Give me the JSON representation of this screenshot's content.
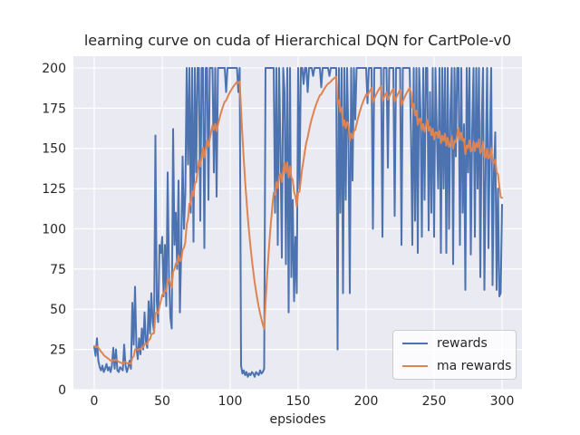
{
  "title": "learning curve on cuda of Hierarchical DQN for CartPole-v0",
  "xlabel": "epsiodes",
  "legend": {
    "position": "lower right",
    "entries": [
      {
        "label": "rewards",
        "color": "#4C72B0"
      },
      {
        "label": "ma rewards",
        "color": "#DD8452"
      }
    ]
  },
  "style": {
    "figure_background": "#FFFFFF",
    "axes_background": "#EAEAF2",
    "grid_color": "#FFFFFF",
    "text_color": "#262626",
    "legend_background": "rgba(255,255,255,0.8)",
    "legend_border": "#CCCCCC"
  },
  "chart_data": {
    "type": "line",
    "title": "learning curve on cuda of Hierarchical DQN for CartPole-v0",
    "xlabel": "epsiodes",
    "ylabel": "",
    "grid": true,
    "legend_position": "lower right",
    "x_ticks": [
      0,
      50,
      100,
      150,
      200,
      250,
      300
    ],
    "y_ticks": [
      0,
      25,
      50,
      75,
      100,
      125,
      150,
      175,
      200
    ],
    "xlim": [
      -15.33,
      314.67
    ],
    "ylim": [
      0,
      207.3
    ],
    "x_description": "episode index, one point per episode from 0 to 300",
    "series": [
      {
        "name": "rewards",
        "color": "#4C72B0",
        "values": [
          27,
          21,
          32,
          18,
          14,
          12,
          15,
          11,
          13,
          16,
          12,
          14,
          11,
          15,
          26,
          13,
          25,
          12,
          11,
          14,
          13,
          12,
          28,
          15,
          11,
          14,
          18,
          13,
          54,
          28,
          64,
          27,
          19,
          32,
          22,
          38,
          25,
          48,
          30,
          26,
          55,
          35,
          60,
          42,
          36,
          158,
          55,
          42,
          90,
          85,
          95,
          58,
          90,
          52,
          135,
          70,
          45,
          38,
          162,
          90,
          110,
          75,
          130,
          48,
          88,
          145,
          100,
          122,
          200,
          140,
          200,
          110,
          200,
          92,
          200,
          135,
          200,
          200,
          105,
          200,
          200,
          88,
          200,
          200,
          118,
          200,
          200,
          200,
          135,
          200,
          120,
          200,
          200,
          200,
          200,
          200,
          200,
          185,
          200,
          200,
          200,
          200,
          200,
          200,
          200,
          200,
          185,
          200,
          15,
          10,
          12,
          9,
          11,
          8,
          10,
          9,
          11,
          10,
          8,
          11,
          10,
          9,
          12,
          10,
          11,
          13,
          200,
          200,
          200,
          200,
          200,
          200,
          200,
          110,
          200,
          90,
          200,
          150,
          82,
          200,
          185,
          78,
          200,
          48,
          200,
          70,
          118,
          55,
          95,
          60,
          200,
          125,
          200,
          200,
          190,
          200,
          200,
          185,
          200,
          200,
          200,
          195,
          200,
          200,
          200,
          200,
          200,
          188,
          200,
          200,
          200,
          200,
          200,
          195,
          200,
          200,
          200,
          200,
          200,
          25,
          200,
          110,
          200,
          60,
          200,
          118,
          200,
          155,
          60,
          200,
          130,
          200,
          168,
          200,
          200,
          200,
          200,
          200,
          200,
          200,
          200,
          178,
          200,
          200,
          200,
          100,
          200,
          200,
          200,
          200,
          200,
          200,
          95,
          200,
          200,
          200,
          138,
          200,
          200,
          200,
          200,
          108,
          200,
          200,
          200,
          200,
          90,
          200,
          200,
          200,
          200,
          200,
          200,
          160,
          90,
          200,
          105,
          200,
          85,
          200,
          172,
          95,
          200,
          118,
          200,
          200,
          99,
          185,
          110,
          200,
          95,
          200,
          160,
          125,
          200,
          85,
          200,
          125,
          200,
          85,
          200,
          100,
          172,
          200,
          78,
          200,
          145,
          200,
          200,
          90,
          200,
          110,
          165,
          62,
          200,
          135,
          200,
          84,
          160,
          200,
          95,
          200,
          125,
          200,
          70,
          165,
          200,
          62,
          140,
          200,
          88,
          155,
          200,
          65,
          135,
          160,
          62,
          125,
          58,
          60,
          115
        ]
      },
      {
        "name": "ma rewards",
        "color": "#DD8452",
        "derived": "exponential moving average of the rewards series",
        "alpha": 0.1,
        "values": []
      }
    ]
  }
}
